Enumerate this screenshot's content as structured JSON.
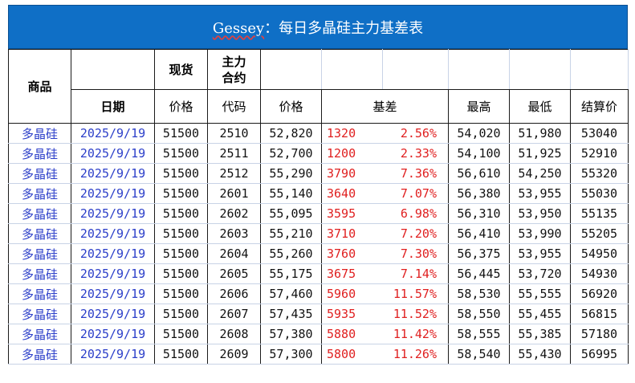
{
  "title": {
    "brand": "Gessey",
    "rest": "：每日多晶硅主力基差表"
  },
  "headers": {
    "product": "商品",
    "spot": "现货",
    "main_contract": "主力\n合约",
    "date": "日期",
    "price": "价格",
    "code": "代码",
    "contract_price": "价格",
    "basis": "基差",
    "high": "最高",
    "low": "最低",
    "settle": "结算价"
  },
  "rows": [
    {
      "product": "多晶硅",
      "date": "2025/9/19",
      "spot": "51500",
      "code": "2510",
      "price": "52,820",
      "basis": "1320",
      "basis_pct": "2.56%",
      "high": "54,020",
      "low": "51,980",
      "settle": "53040"
    },
    {
      "product": "多晶硅",
      "date": "2025/9/19",
      "spot": "51500",
      "code": "2511",
      "price": "52,700",
      "basis": "1200",
      "basis_pct": "2.33%",
      "high": "54,100",
      "low": "51,925",
      "settle": "52910"
    },
    {
      "product": "多晶硅",
      "date": "2025/9/19",
      "spot": "51500",
      "code": "2512",
      "price": "55,290",
      "basis": "3790",
      "basis_pct": "7.36%",
      "high": "56,610",
      "low": "54,250",
      "settle": "55320"
    },
    {
      "product": "多晶硅",
      "date": "2025/9/19",
      "spot": "51500",
      "code": "2601",
      "price": "55,140",
      "basis": "3640",
      "basis_pct": "7.07%",
      "high": "56,380",
      "low": "53,955",
      "settle": "55030"
    },
    {
      "product": "多晶硅",
      "date": "2025/9/19",
      "spot": "51500",
      "code": "2602",
      "price": "55,095",
      "basis": "3595",
      "basis_pct": "6.98%",
      "high": "56,310",
      "low": "53,950",
      "settle": "55135"
    },
    {
      "product": "多晶硅",
      "date": "2025/9/19",
      "spot": "51500",
      "code": "2603",
      "price": "55,210",
      "basis": "3710",
      "basis_pct": "7.20%",
      "high": "56,410",
      "low": "53,990",
      "settle": "55205"
    },
    {
      "product": "多晶硅",
      "date": "2025/9/19",
      "spot": "51500",
      "code": "2604",
      "price": "55,260",
      "basis": "3760",
      "basis_pct": "7.30%",
      "high": "56,375",
      "low": "53,955",
      "settle": "54950"
    },
    {
      "product": "多晶硅",
      "date": "2025/9/19",
      "spot": "51500",
      "code": "2605",
      "price": "55,175",
      "basis": "3675",
      "basis_pct": "7.14%",
      "high": "56,445",
      "low": "53,720",
      "settle": "54930"
    },
    {
      "product": "多晶硅",
      "date": "2025/9/19",
      "spot": "51500",
      "code": "2606",
      "price": "57,460",
      "basis": "5960",
      "basis_pct": "11.57%",
      "high": "58,530",
      "low": "55,555",
      "settle": "56920"
    },
    {
      "product": "多晶硅",
      "date": "2025/9/19",
      "spot": "51500",
      "code": "2607",
      "price": "57,435",
      "basis": "5935",
      "basis_pct": "11.52%",
      "high": "58,550",
      "low": "55,455",
      "settle": "56815"
    },
    {
      "product": "多晶硅",
      "date": "2025/9/19",
      "spot": "51500",
      "code": "2608",
      "price": "57,380",
      "basis": "5880",
      "basis_pct": "11.42%",
      "high": "58,555",
      "low": "55,385",
      "settle": "57180"
    },
    {
      "product": "多晶硅",
      "date": "2025/9/19",
      "spot": "51500",
      "code": "2609",
      "price": "57,300",
      "basis": "5800",
      "basis_pct": "11.26%",
      "high": "58,540",
      "low": "55,430",
      "settle": "56995"
    }
  ],
  "colors": {
    "title_bg": "#0f6fc6",
    "blue_text": "#2b3ec9",
    "red_text": "#e02020"
  }
}
